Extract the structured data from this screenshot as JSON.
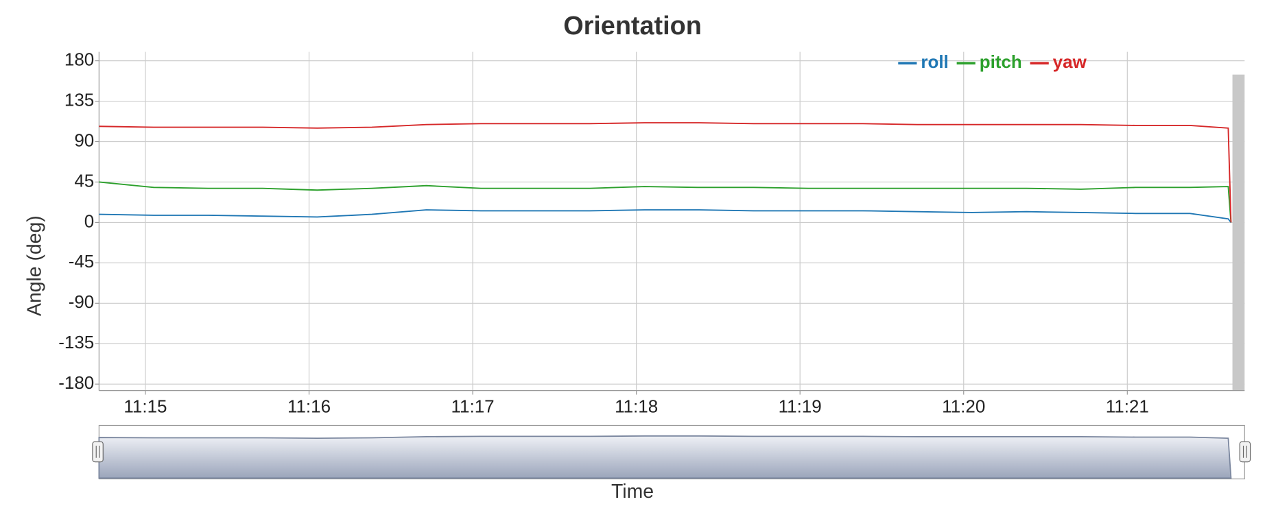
{
  "chart_data": {
    "type": "line",
    "title": "Orientation",
    "x_label": "Time",
    "y_label": "Angle (deg)",
    "x": [
      "11:14:43",
      "11:15:03",
      "11:15:23",
      "11:15:43",
      "11:16:03",
      "11:16:23",
      "11:16:43",
      "11:17:03",
      "11:17:23",
      "11:17:43",
      "11:18:03",
      "11:18:23",
      "11:18:43",
      "11:19:03",
      "11:19:23",
      "11:19:43",
      "11:20:03",
      "11:20:23",
      "11:20:43",
      "11:21:03",
      "11:21:23",
      "11:21:37",
      "11:21:38"
    ],
    "series": [
      {
        "name": "roll",
        "color": "#1f77b4",
        "values": [
          9,
          8,
          8,
          7,
          6,
          9,
          14,
          13,
          13,
          13,
          14,
          14,
          13,
          13,
          13,
          12,
          11,
          12,
          11,
          10,
          10,
          4,
          0
        ]
      },
      {
        "name": "pitch",
        "color": "#2ca02c",
        "values": [
          45,
          39,
          38,
          38,
          36,
          38,
          41,
          38,
          38,
          38,
          40,
          39,
          39,
          38,
          38,
          38,
          38,
          38,
          37,
          39,
          39,
          40,
          0
        ]
      },
      {
        "name": "yaw",
        "color": "#d62728",
        "values": [
          107,
          106,
          106,
          106,
          105,
          106,
          109,
          110,
          110,
          110,
          111,
          111,
          110,
          110,
          110,
          109,
          109,
          109,
          109,
          108,
          108,
          105,
          0
        ]
      }
    ],
    "xlim": [
      "11:14:43",
      "11:21:43"
    ],
    "xticks": [
      {
        "value": "11:15:00",
        "label": "11:15"
      },
      {
        "value": "11:16:00",
        "label": "11:16"
      },
      {
        "value": "11:17:00",
        "label": "11:17"
      },
      {
        "value": "11:18:00",
        "label": "11:18"
      },
      {
        "value": "11:19:00",
        "label": "11:19"
      },
      {
        "value": "11:20:00",
        "label": "11:20"
      },
      {
        "value": "11:21:00",
        "label": "11:21"
      }
    ],
    "ylim": [
      -180,
      180
    ],
    "yticks": [
      -180,
      -135,
      -90,
      -45,
      0,
      45,
      90,
      135,
      180
    ],
    "grid": true,
    "legend": "top-right"
  }
}
